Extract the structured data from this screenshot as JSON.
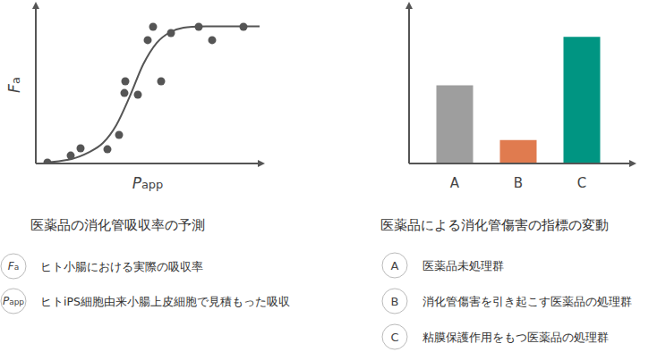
{
  "chart_data": [
    {
      "type": "scatter",
      "title": "医薬品の消化管吸収率の予測",
      "xlabel": "Papp",
      "ylabel": "Fa",
      "xlim": [
        0,
        100
      ],
      "ylim": [
        0,
        100
      ],
      "tick_labels": false,
      "grid": false,
      "color": "#555555",
      "series": [
        {
          "type": "scatter",
          "marker": "circle",
          "x": [
            5.2,
            15.6,
            20,
            32,
            37.2,
            39.6,
            40,
            45.6,
            50,
            52.4,
            56,
            60.4,
            72.8,
            78.8,
            92.8
          ],
          "values": [
            0.6,
            5.1,
            9.7,
            9.1,
            18.3,
            45.1,
            52.6,
            44,
            78.9,
            87.4,
            52.6,
            83.4,
            87.4,
            78.9,
            87.4
          ]
        },
        {
          "type": "line",
          "line_style": "solid",
          "x": [
            5.2,
            16,
            24,
            30,
            36,
            42,
            48,
            54,
            60,
            66,
            76,
            100
          ],
          "values": [
            0.6,
            2.9,
            7.4,
            13.1,
            24.6,
            42.9,
            63.4,
            77.1,
            84,
            86.9,
            87.7,
            87.7
          ]
        }
      ],
      "annotations": [
        {
          "label": "Fa",
          "text": "ヒト小腸における実際の吸収率"
        },
        {
          "label": "Papp",
          "text": "ヒトiPS細胞由来小腸上皮細胞で見積もった吸収"
        }
      ]
    },
    {
      "type": "bar",
      "title": "医薬品による消化管傷害の指標の変動",
      "categories": [
        "A",
        "B",
        "C"
      ],
      "values": [
        50,
        15,
        81
      ],
      "colors": [
        "#9e9e9e",
        "#e07b4f",
        "#009582"
      ],
      "ylim": [
        0,
        100
      ],
      "tick_labels": "x",
      "grid": false,
      "annotations": [
        {
          "label": "A",
          "text": "医薬品未処理群"
        },
        {
          "label": "B",
          "text": "消化管傷害を引き起こす医薬品の処理群"
        },
        {
          "label": "C",
          "text": "粘膜保護作用をもつ医薬品の処理群"
        }
      ]
    }
  ]
}
